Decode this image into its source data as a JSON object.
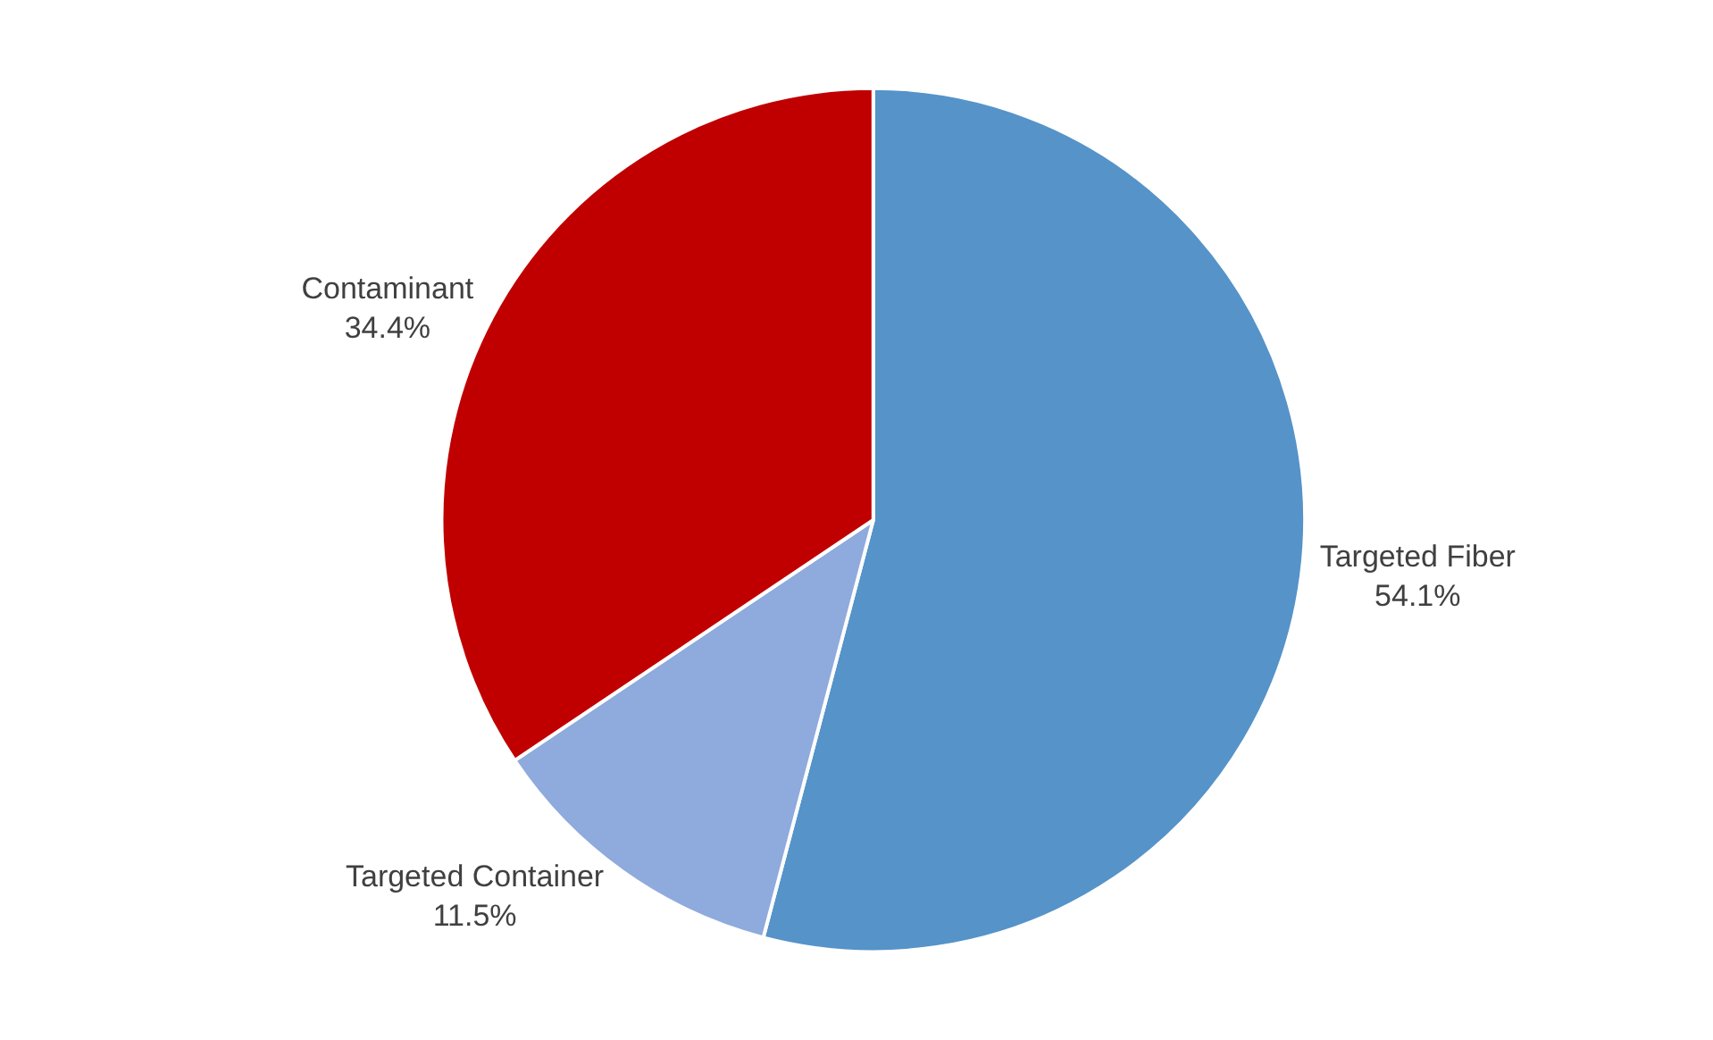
{
  "chart_data": {
    "type": "pie",
    "categories": [
      "Targeted Fiber",
      "Targeted Container",
      "Contaminant"
    ],
    "values": [
      54.1,
      11.5,
      34.4
    ],
    "value_labels": [
      "54.1%",
      "11.5%",
      "34.4%"
    ],
    "colors": [
      "#5593c9",
      "#8faadc",
      "#c00000"
    ],
    "legend": false
  }
}
